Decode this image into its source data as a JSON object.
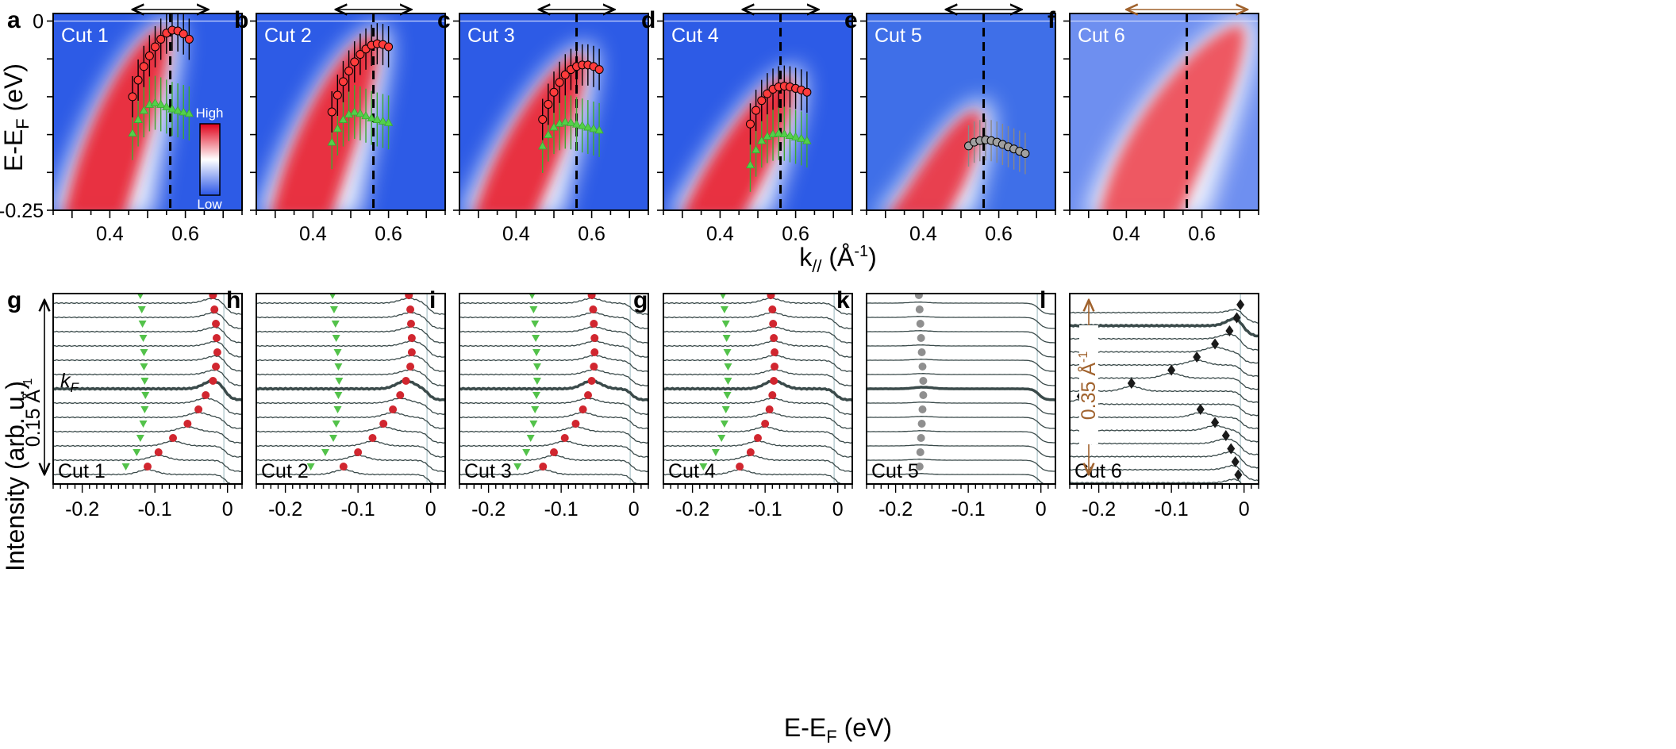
{
  "figure": {
    "top_x_title": "k// (Å-1)",
    "top_x_title_main": "k",
    "top_x_title_sub": "//",
    "top_x_title_unit": "(Å",
    "top_x_title_exp": "-1",
    "top_x_title_close": ")",
    "top_y_title": "E-EF (eV)",
    "top_y_title_main": "E-E",
    "top_y_title_sub": "F",
    "top_y_title_unit": "(eV)",
    "bottom_x_title": "E-EF (eV)",
    "bottom_x_title_main": "E-E",
    "bottom_x_title_sub": "F",
    "bottom_x_title_unit": "(eV)",
    "bottom_y_title": "Intensity (arb. u.)",
    "scale_015": "0.15 Å",
    "scale_015_exp": "-1",
    "scale_035": "0.35 Å",
    "scale_035_exp": "-1",
    "kf_label": "k",
    "kf_sub": "F",
    "colorbar_high": "High",
    "colorbar_low": "Low"
  },
  "chart_data": [
    {
      "type": "heatmap",
      "label": "a",
      "cut": "Cut 1",
      "xlim": [
        0.25,
        0.75
      ],
      "ylim": [
        -0.25,
        0.01
      ],
      "xticks": [
        "0.4",
        "0.6"
      ],
      "xtick_values": [
        0.4,
        0.6
      ],
      "yticks": [
        "0",
        "-0.25"
      ],
      "ytick_values": [
        0,
        -0.25
      ],
      "kF": 0.56,
      "band": {
        "k_bottom": 0.29,
        "k_top": 0.555,
        "E_top": -0.005
      },
      "red_points": [
        [
          0.46,
          -0.1
        ],
        [
          0.475,
          -0.078
        ],
        [
          0.49,
          -0.06
        ],
        [
          0.505,
          -0.046
        ],
        [
          0.52,
          -0.034
        ],
        [
          0.535,
          -0.024
        ],
        [
          0.55,
          -0.016
        ],
        [
          0.565,
          -0.012
        ],
        [
          0.58,
          -0.013
        ],
        [
          0.595,
          -0.017
        ],
        [
          0.61,
          -0.024
        ]
      ],
      "green_points": [
        [
          0.46,
          -0.148
        ],
        [
          0.475,
          -0.13
        ],
        [
          0.49,
          -0.118
        ],
        [
          0.505,
          -0.11
        ],
        [
          0.52,
          -0.108
        ],
        [
          0.535,
          -0.11
        ],
        [
          0.55,
          -0.113
        ],
        [
          0.565,
          -0.116
        ],
        [
          0.58,
          -0.118
        ],
        [
          0.595,
          -0.12
        ],
        [
          0.61,
          -0.122
        ]
      ]
    },
    {
      "type": "heatmap",
      "label": "b",
      "cut": "Cut 2",
      "xlim": [
        0.25,
        0.75
      ],
      "ylim": [
        -0.25,
        0.01
      ],
      "xticks": [
        "0.4",
        "0.6"
      ],
      "xtick_values": [
        0.4,
        0.6
      ],
      "yticks": [],
      "ytick_values": [],
      "kF": 0.56,
      "band": {
        "k_bottom": 0.3,
        "k_top": 0.57,
        "E_top": -0.015
      },
      "red_points": [
        [
          0.45,
          -0.12
        ],
        [
          0.465,
          -0.098
        ],
        [
          0.48,
          -0.08
        ],
        [
          0.495,
          -0.066
        ],
        [
          0.51,
          -0.054
        ],
        [
          0.525,
          -0.044
        ],
        [
          0.54,
          -0.037
        ],
        [
          0.555,
          -0.032
        ],
        [
          0.57,
          -0.03
        ],
        [
          0.585,
          -0.031
        ],
        [
          0.6,
          -0.034
        ]
      ],
      "green_points": [
        [
          0.45,
          -0.16
        ],
        [
          0.465,
          -0.142
        ],
        [
          0.48,
          -0.13
        ],
        [
          0.495,
          -0.123
        ],
        [
          0.51,
          -0.12
        ],
        [
          0.525,
          -0.122
        ],
        [
          0.54,
          -0.125
        ],
        [
          0.555,
          -0.128
        ],
        [
          0.57,
          -0.13
        ],
        [
          0.585,
          -0.132
        ],
        [
          0.6,
          -0.134
        ]
      ]
    },
    {
      "type": "heatmap",
      "label": "c",
      "cut": "Cut 3",
      "xlim": [
        0.25,
        0.75
      ],
      "ylim": [
        -0.25,
        0.01
      ],
      "xticks": [
        "0.4",
        "0.6"
      ],
      "xtick_values": [
        0.4,
        0.6
      ],
      "yticks": [],
      "ytick_values": [],
      "kF": 0.56,
      "band": {
        "k_bottom": 0.3,
        "k_top": 0.58,
        "E_top": -0.04
      },
      "red_points": [
        [
          0.47,
          -0.13
        ],
        [
          0.485,
          -0.11
        ],
        [
          0.5,
          -0.094
        ],
        [
          0.515,
          -0.081
        ],
        [
          0.53,
          -0.071
        ],
        [
          0.545,
          -0.064
        ],
        [
          0.56,
          -0.06
        ],
        [
          0.575,
          -0.058
        ],
        [
          0.59,
          -0.058
        ],
        [
          0.605,
          -0.06
        ],
        [
          0.62,
          -0.064
        ]
      ],
      "green_points": [
        [
          0.47,
          -0.165
        ],
        [
          0.485,
          -0.15
        ],
        [
          0.5,
          -0.14
        ],
        [
          0.515,
          -0.135
        ],
        [
          0.53,
          -0.133
        ],
        [
          0.545,
          -0.134
        ],
        [
          0.56,
          -0.136
        ],
        [
          0.575,
          -0.138
        ],
        [
          0.59,
          -0.14
        ],
        [
          0.605,
          -0.142
        ],
        [
          0.62,
          -0.144
        ]
      ]
    },
    {
      "type": "heatmap",
      "label": "d",
      "cut": "Cut 4",
      "xlim": [
        0.25,
        0.75
      ],
      "ylim": [
        -0.25,
        0.01
      ],
      "xticks": [
        "0.4",
        "0.6"
      ],
      "xtick_values": [
        0.4,
        0.6
      ],
      "yticks": [],
      "ytick_values": [],
      "kF": 0.56,
      "band": {
        "k_bottom": 0.31,
        "k_top": 0.59,
        "E_top": -0.07
      },
      "red_points": [
        [
          0.48,
          -0.136
        ],
        [
          0.495,
          -0.118
        ],
        [
          0.51,
          -0.105
        ],
        [
          0.525,
          -0.096
        ],
        [
          0.54,
          -0.09
        ],
        [
          0.555,
          -0.087
        ],
        [
          0.57,
          -0.086
        ],
        [
          0.585,
          -0.087
        ],
        [
          0.6,
          -0.089
        ],
        [
          0.615,
          -0.091
        ],
        [
          0.63,
          -0.094
        ]
      ],
      "green_points": [
        [
          0.48,
          -0.19
        ],
        [
          0.495,
          -0.17
        ],
        [
          0.51,
          -0.158
        ],
        [
          0.525,
          -0.152
        ],
        [
          0.54,
          -0.149
        ],
        [
          0.555,
          -0.148
        ],
        [
          0.57,
          -0.149
        ],
        [
          0.585,
          -0.151
        ],
        [
          0.6,
          -0.153
        ],
        [
          0.615,
          -0.155
        ],
        [
          0.63,
          -0.158
        ]
      ]
    },
    {
      "type": "heatmap",
      "label": "e",
      "cut": "Cut 5",
      "xlim": [
        0.25,
        0.75
      ],
      "ylim": [
        -0.25,
        0.01
      ],
      "xticks": [
        "0.4",
        "0.6"
      ],
      "xtick_values": [
        0.4,
        0.6
      ],
      "yticks": [],
      "ytick_values": [],
      "kF": 0.56,
      "band": {
        "k_bottom": 0.31,
        "k_top": 0.55,
        "E_top": -0.115
      },
      "red_points": [],
      "gray_points": [
        [
          0.52,
          -0.165
        ],
        [
          0.535,
          -0.16
        ],
        [
          0.55,
          -0.158
        ],
        [
          0.565,
          -0.157
        ],
        [
          0.58,
          -0.158
        ],
        [
          0.595,
          -0.16
        ],
        [
          0.61,
          -0.163
        ],
        [
          0.625,
          -0.166
        ],
        [
          0.64,
          -0.169
        ],
        [
          0.655,
          -0.172
        ],
        [
          0.67,
          -0.175
        ]
      ],
      "green_points": []
    },
    {
      "type": "heatmap",
      "label": "f",
      "cut": "Cut 6",
      "xlim": [
        0.25,
        0.75
      ],
      "ylim": [
        -0.25,
        0.01
      ],
      "xticks": [
        "0.4",
        "0.6"
      ],
      "xtick_values": [
        0.4,
        0.6
      ],
      "yticks": [],
      "ytick_values": [],
      "kF": 0.56,
      "band": {
        "k_bottom": 0.34,
        "k_top": 0.71,
        "E_top": -0.002
      },
      "red_points": [],
      "green_points": []
    },
    {
      "type": "line",
      "label": "g",
      "cut": "Cut 1",
      "xlim": [
        -0.24,
        0.02
      ],
      "xticks": [
        "-0.2",
        "-0.1",
        "0"
      ],
      "xtick_values": [
        -0.2,
        -0.1,
        0
      ],
      "n_curves": 13,
      "kF_index": 6,
      "peaks_red": [
        -0.02,
        -0.018,
        -0.016,
        -0.015,
        -0.014,
        -0.016,
        -0.02,
        -0.03,
        -0.04,
        -0.055,
        -0.075,
        -0.095,
        -0.11
      ],
      "peaks_green": [
        -0.12,
        -0.118,
        -0.117,
        -0.116,
        -0.115,
        -0.115,
        -0.114,
        -0.113,
        -0.114,
        -0.116,
        -0.12,
        -0.125,
        -0.14
      ]
    },
    {
      "type": "line",
      "label": "h",
      "cut": "Cut 2",
      "xlim": [
        -0.24,
        0.02
      ],
      "xticks": [
        "-0.2",
        "-0.1",
        "0"
      ],
      "xtick_values": [
        -0.2,
        -0.1,
        0
      ],
      "n_curves": 13,
      "kF_index": 6,
      "peaks_red": [
        -0.03,
        -0.028,
        -0.027,
        -0.026,
        -0.026,
        -0.028,
        -0.034,
        -0.042,
        -0.052,
        -0.065,
        -0.08,
        -0.1,
        -0.12
      ],
      "peaks_green": [
        -0.135,
        -0.133,
        -0.131,
        -0.13,
        -0.128,
        -0.127,
        -0.126,
        -0.127,
        -0.128,
        -0.13,
        -0.134,
        -0.145,
        -0.165
      ]
    },
    {
      "type": "line",
      "label": "i",
      "cut": "Cut 3",
      "xlim": [
        -0.24,
        0.02
      ],
      "xticks": [
        "-0.2",
        "-0.1",
        "0"
      ],
      "xtick_values": [
        -0.2,
        -0.1,
        0
      ],
      "n_curves": 13,
      "kF_index": 6,
      "peaks_red": [
        -0.058,
        -0.056,
        -0.055,
        -0.054,
        -0.054,
        -0.055,
        -0.058,
        -0.063,
        -0.07,
        -0.08,
        -0.095,
        -0.11,
        -0.125
      ],
      "peaks_green": [
        -0.14,
        -0.138,
        -0.136,
        -0.135,
        -0.134,
        -0.133,
        -0.133,
        -0.134,
        -0.136,
        -0.138,
        -0.142,
        -0.148,
        -0.16
      ]
    },
    {
      "type": "line",
      "label": "g",
      "cut": "Cut 4",
      "xlim": [
        -0.24,
        0.02
      ],
      "xticks": [
        "-0.2",
        "-0.1",
        "0"
      ],
      "xtick_values": [
        -0.2,
        -0.1,
        0
      ],
      "n_curves": 13,
      "kF_index": 6,
      "peaks_red": [
        -0.092,
        -0.09,
        -0.089,
        -0.088,
        -0.087,
        -0.087,
        -0.088,
        -0.09,
        -0.094,
        -0.1,
        -0.11,
        -0.12,
        -0.135
      ],
      "peaks_green": [
        -0.158,
        -0.156,
        -0.154,
        -0.153,
        -0.152,
        -0.151,
        -0.151,
        -0.152,
        -0.154,
        -0.156,
        -0.16,
        -0.168,
        -0.185
      ]
    },
    {
      "type": "line",
      "label": "k",
      "cut": "Cut 5",
      "xlim": [
        -0.24,
        0.02
      ],
      "xticks": [
        "-0.2",
        "-0.1",
        "0"
      ],
      "xtick_values": [
        -0.2,
        -0.1,
        0
      ],
      "n_curves": 13,
      "kF_index": 6,
      "peaks_gray": [
        -0.168,
        -0.167,
        -0.166,
        -0.165,
        -0.164,
        -0.163,
        -0.162,
        -0.162,
        -0.163,
        -0.164,
        -0.165,
        -0.166,
        -0.167
      ]
    },
    {
      "type": "line",
      "label": "l",
      "cut": "Cut 6",
      "xlim": [
        -0.24,
        0.02
      ],
      "xticks": [
        "-0.2",
        "-0.1",
        "0"
      ],
      "xtick_values": [
        -0.2,
        -0.1,
        0
      ],
      "n_curves": 14,
      "kF_index": 1,
      "peaks_black": [
        -0.005,
        -0.01,
        -0.02,
        -0.04,
        -0.065,
        -0.1,
        -0.155,
        -0.225,
        -0.06,
        -0.04,
        -0.025,
        -0.018,
        -0.012,
        -0.008
      ]
    }
  ]
}
